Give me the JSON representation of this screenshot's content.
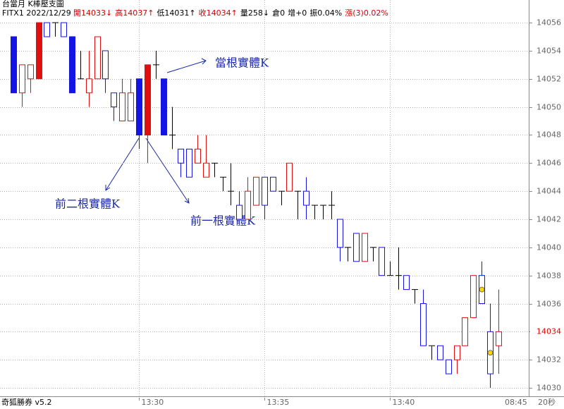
{
  "header": {
    "title": "台當月 K棒壓支圖",
    "symbol_date": "FITX1 2022/12/29",
    "stats": [
      {
        "text": "開14033↓",
        "color": "#d00000"
      },
      {
        "text": "高14037↑",
        "color": "#d00000"
      },
      {
        "text": "低14031↑",
        "color": "#000000"
      },
      {
        "text": "收14034↑",
        "color": "#d00000"
      },
      {
        "text": "量258↓",
        "color": "#000000"
      },
      {
        "text": "倉0",
        "color": "#000000"
      },
      {
        "text": "增+0",
        "color": "#000000"
      },
      {
        "text": "振0.04%",
        "color": "#000000"
      },
      {
        "text": "漲(3)0.02%",
        "color": "#d00000"
      }
    ]
  },
  "footer": {
    "brand": "奇狐勝券 v5.2",
    "session_time": "08:45",
    "interval": "20秒"
  },
  "chart_data": {
    "type": "candlestick",
    "categories": [
      null,
      null,
      null,
      null,
      null,
      null,
      null,
      null,
      null,
      null,
      null,
      null,
      null,
      null,
      null,
      "13:30",
      null,
      null,
      null,
      null,
      null,
      null,
      null,
      null,
      null,
      null,
      null,
      null,
      null,
      null,
      "13:35",
      null,
      null,
      null,
      null,
      null,
      null,
      null,
      null,
      null,
      null,
      null,
      null,
      null,
      null,
      "13:40",
      null,
      null,
      null,
      null,
      null,
      null,
      null,
      null,
      null,
      null,
      null,
      null,
      null
    ],
    "open": [
      14055,
      14051,
      14052,
      14052,
      14056,
      14056,
      14056,
      14055,
      14052,
      14051,
      14052,
      14054,
      14051,
      14049,
      14049,
      14052,
      14048,
      14053,
      14052,
      14048,
      14047,
      14047,
      14046,
      14045,
      14046,
      14045,
      14044,
      14043,
      14042,
      14043,
      14045,
      14045,
      14044,
      14044,
      14044,
      14044,
      14043,
      14043,
      14043,
      14042,
      14040,
      14041,
      14039,
      14040,
      14040,
      14038,
      14038,
      14038,
      14037,
      14036,
      14033,
      14033,
      14032,
      14032,
      14033,
      14035,
      14038,
      14034,
      14033
    ],
    "high": [
      14055,
      14053,
      14053,
      14056,
      14056,
      14056,
      14056,
      14055,
      14054,
      14054,
      14055,
      14054,
      14051,
      14052,
      14052,
      14052,
      14053,
      14054,
      14052,
      14050,
      14047,
      14047,
      14048,
      14048,
      14046,
      14045,
      14046,
      14044,
      14045,
      14045,
      14045,
      14045,
      14044,
      14046,
      14044,
      14045,
      14043,
      14043,
      14044,
      14042,
      14040,
      14041,
      14041,
      14040,
      14040,
      14039,
      14040,
      14038,
      14037,
      14037,
      14033,
      14033,
      14032,
      14033,
      14035,
      14038,
      14039,
      14036,
      14037
    ],
    "low": [
      14051,
      14050,
      14051,
      14052,
      14055,
      14055,
      14055,
      14051,
      14052,
      14050,
      14052,
      14051,
      14049,
      14049,
      14049,
      14047,
      14046,
      14052,
      14048,
      14047,
      14045,
      14045,
      14046,
      14045,
      14045,
      14044,
      14043,
      14042,
      14042,
      14043,
      14042,
      14044,
      14043,
      14044,
      14042,
      14042,
      14042,
      14042,
      14042,
      14039,
      14039,
      14039,
      14039,
      14039,
      14038,
      14038,
      14037,
      14037,
      14036,
      14033,
      14032,
      14032,
      14031,
      14031,
      14033,
      14035,
      14036,
      14030,
      14031
    ],
    "close": [
      14051,
      14053,
      14053,
      14056,
      14055,
      14056,
      14055,
      14051,
      14052,
      14052,
      14055,
      14052,
      14050,
      14051,
      14051,
      14048,
      14053,
      14053,
      14048,
      14048,
      14046,
      14045,
      14047,
      14046,
      14046,
      14045,
      14044,
      14042,
      14044,
      14045,
      14043,
      14044,
      14044,
      14046,
      14044,
      14043,
      14043,
      14043,
      14043,
      14040,
      14040,
      14039,
      14041,
      14040,
      14038,
      14038,
      14038,
      14037,
      14037,
      14033,
      14033,
      14032,
      14031,
      14033,
      14035,
      14038,
      14036,
      14031,
      14034
    ],
    "filled": [
      true,
      false,
      false,
      true,
      false,
      false,
      false,
      true,
      false,
      false,
      false,
      false,
      false,
      false,
      false,
      true,
      true,
      false,
      true,
      false,
      false,
      false,
      false,
      false,
      false,
      false,
      false,
      false,
      false,
      false,
      false,
      false,
      false,
      false,
      false,
      false,
      false,
      false,
      false,
      false,
      false,
      false,
      false,
      false,
      false,
      false,
      false,
      false,
      false,
      false,
      false,
      false,
      false,
      false,
      false,
      false,
      false,
      false,
      false
    ],
    "dots": [
      null,
      null,
      null,
      null,
      null,
      null,
      null,
      null,
      null,
      null,
      null,
      null,
      null,
      null,
      null,
      null,
      null,
      null,
      null,
      null,
      null,
      null,
      null,
      null,
      null,
      null,
      null,
      null,
      null,
      null,
      null,
      null,
      null,
      null,
      null,
      null,
      null,
      null,
      null,
      null,
      null,
      null,
      null,
      null,
      null,
      null,
      null,
      null,
      null,
      null,
      null,
      null,
      null,
      null,
      null,
      null,
      14037,
      14032.5,
      null
    ],
    "colors": {
      "up": "#e01010",
      "down": "#1414e6",
      "flat": "#000000",
      "dot": "#ffd700",
      "last": "#e00000"
    },
    "ylim": [
      14029.5,
      14057
    ],
    "yticks": [
      14030,
      14032,
      14034,
      14036,
      14038,
      14040,
      14042,
      14044,
      14046,
      14048,
      14050,
      14052,
      14054,
      14056
    ],
    "grid": true,
    "annotations": [
      {
        "text": "當根實體K"
      },
      {
        "text": "前二根實體K"
      },
      {
        "text": "前一根實體K"
      }
    ]
  }
}
